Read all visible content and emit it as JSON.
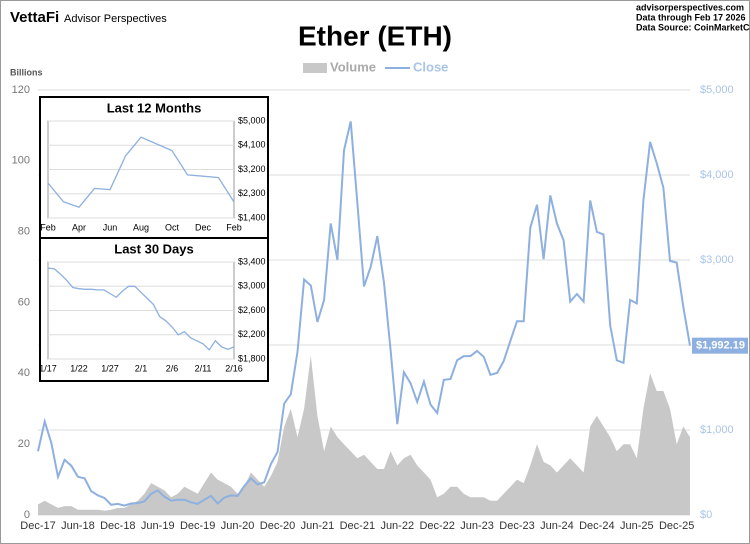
{
  "header": {
    "brand": "VettaFi",
    "publisher": "Advisor Perspectives",
    "site": "advisorperspectives.com",
    "data_through": "Data through Feb 17 2026",
    "source": "Data Source: CoinMarketCap"
  },
  "chart_data": [
    {
      "type": "line",
      "title": "Ether (ETH)",
      "y_label": "Billions",
      "categories": [
        "Dec-17",
        null,
        null,
        null,
        null,
        null,
        "Jun-18",
        null,
        null,
        null,
        null,
        null,
        "Dec-18",
        null,
        null,
        null,
        null,
        null,
        "Jun-19",
        null,
        null,
        null,
        null,
        null,
        "Dec-19",
        null,
        null,
        null,
        null,
        null,
        "Jun-20",
        null,
        null,
        null,
        null,
        null,
        "Dec-20",
        null,
        null,
        null,
        null,
        null,
        "Jun-21",
        null,
        null,
        null,
        null,
        null,
        "Dec-21",
        null,
        null,
        null,
        null,
        null,
        "Jun-22",
        null,
        null,
        null,
        null,
        null,
        "Dec-22",
        null,
        null,
        null,
        null,
        null,
        "Jun-23",
        null,
        null,
        null,
        null,
        null,
        "Dec-23",
        null,
        null,
        null,
        null,
        null,
        "Jun-24",
        null,
        null,
        null,
        null,
        null,
        "Dec-24",
        null,
        null,
        null,
        null,
        null,
        "Jun-25",
        null,
        null,
        null,
        null,
        null,
        "Dec-25",
        null,
        null
      ],
      "ylim": [
        0,
        120
      ],
      "yticks": [
        0,
        20,
        40,
        60,
        80,
        100,
        120
      ],
      "y2lim": [
        0,
        5000
      ],
      "y2ticks": [
        {
          "value": 0,
          "label": "$0"
        },
        {
          "value": 1000,
          "label": "$1,000"
        },
        {
          "value": 2000,
          "label": "$2,000"
        },
        {
          "value": 3000,
          "label": "$3,000"
        },
        {
          "value": 4000,
          "label": "$4,000"
        },
        {
          "value": 5000,
          "label": "$5,000"
        }
      ],
      "grid": true,
      "series": [
        {
          "name": "Volume",
          "style": "area",
          "color": "#c8c8c8",
          "values": [
            3,
            4,
            3,
            2,
            2.5,
            2.5,
            1.5,
            1.5,
            1.5,
            1.5,
            1.2,
            1.5,
            2,
            2,
            3,
            4,
            6,
            9,
            8,
            7,
            5,
            6,
            8,
            7,
            6,
            9,
            12,
            10,
            9,
            8,
            6,
            8,
            12,
            10,
            8,
            11,
            15,
            25,
            30,
            22,
            30,
            45,
            28,
            18,
            25,
            22,
            20,
            18,
            16,
            17,
            15,
            13,
            13,
            18,
            14,
            16,
            17,
            14,
            12,
            10,
            5,
            6,
            8,
            8,
            6,
            5,
            5,
            5,
            4,
            4,
            6,
            8,
            10,
            9,
            14,
            20,
            15,
            14,
            12,
            14,
            16,
            14,
            12,
            25,
            28,
            25,
            22,
            18,
            20,
            20,
            16,
            30,
            40,
            35,
            35,
            30,
            20,
            25,
            22
          ]
        },
        {
          "name": "Close",
          "style": "line",
          "axis": "y2",
          "color": "#8eb0e0",
          "values": [
            750,
            1100,
            850,
            450,
            650,
            580,
            450,
            430,
            280,
            230,
            200,
            120,
            130,
            110,
            135,
            140,
            160,
            250,
            290,
            215,
            170,
            180,
            180,
            150,
            130,
            180,
            225,
            135,
            205,
            230,
            225,
            340,
            430,
            360,
            385,
            600,
            740,
            1310,
            1420,
            1920,
            2770,
            2700,
            2270,
            2530,
            3430,
            3000,
            4290,
            4630,
            3680,
            2690,
            2920,
            3280,
            2730,
            1940,
            1070,
            1680,
            1550,
            1330,
            1570,
            1300,
            1200,
            1590,
            1600,
            1820,
            1870,
            1870,
            1930,
            1860,
            1650,
            1670,
            1810,
            2050,
            2280,
            2280,
            3380,
            3650,
            3010,
            3760,
            3430,
            3230,
            2510,
            2600,
            2510,
            3700,
            3330,
            3300,
            2230,
            1820,
            1790,
            2530,
            2490,
            3700,
            4390,
            4140,
            3850,
            2990,
            2970,
            2450,
            1992.19
          ],
          "value_labels": [
            null,
            null,
            null,
            null,
            null,
            null,
            null,
            null,
            null,
            null,
            null,
            null,
            null,
            null,
            null,
            null,
            null,
            null,
            null,
            null,
            null,
            null,
            null,
            null,
            null,
            null,
            null,
            null,
            null,
            null,
            null,
            null,
            null,
            null,
            null,
            null,
            null,
            null,
            null,
            null,
            null,
            null,
            null,
            null,
            null,
            null,
            null,
            null,
            null,
            null,
            null,
            null,
            null,
            null,
            null,
            null,
            null,
            null,
            null,
            null,
            null,
            null,
            null,
            null,
            null,
            null,
            null,
            null,
            null,
            null,
            null,
            null,
            null,
            null,
            null,
            null,
            null,
            null,
            null,
            null,
            null,
            null,
            null,
            null,
            null,
            null,
            null,
            null,
            null,
            null,
            null,
            null,
            null,
            null,
            null,
            null,
            null,
            null,
            "$1,992.19"
          ]
        }
      ]
    },
    {
      "type": "line",
      "title": "Last 12 Months",
      "categories": [
        "Feb",
        null,
        "Apr",
        null,
        "Jun",
        null,
        "Aug",
        null,
        "Oct",
        null,
        "Dec",
        null,
        "Feb"
      ],
      "y2lim": [
        1400,
        5000
      ],
      "y2ticks": [
        {
          "value": 1400,
          "label": "$1,400"
        },
        {
          "value": 2300,
          "label": "$2,300"
        },
        {
          "value": 3200,
          "label": "$3,200"
        },
        {
          "value": 4100,
          "label": "$4,100"
        },
        {
          "value": 5000,
          "label": "$5,000"
        }
      ],
      "grid": true,
      "series": [
        {
          "style": "line",
          "axis": "y2",
          "color": "#8eb0e0",
          "values": [
            2700,
            2000,
            1800,
            2500,
            2450,
            3700,
            4400,
            4150,
            3900,
            3000,
            2950,
            2900,
            1992
          ]
        }
      ]
    },
    {
      "type": "line",
      "title": "Last 30 Days",
      "categories": [
        "1/17",
        null,
        null,
        null,
        null,
        "1/22",
        null,
        null,
        null,
        null,
        "1/27",
        null,
        null,
        null,
        null,
        "2/1",
        null,
        null,
        null,
        null,
        "2/6",
        null,
        null,
        null,
        null,
        "2/11",
        null,
        null,
        null,
        null,
        "2/16"
      ],
      "y2lim": [
        1800,
        3400
      ],
      "y2ticks": [
        {
          "value": 1800,
          "label": "$1,800"
        },
        {
          "value": 2200,
          "label": "$2,200"
        },
        {
          "value": 2600,
          "label": "$2,600"
        },
        {
          "value": 3000,
          "label": "$3,000"
        },
        {
          "value": 3400,
          "label": "$3,400"
        }
      ],
      "grid": true,
      "series": [
        {
          "style": "line",
          "axis": "y2",
          "color": "#8eb0e0",
          "values": [
            3300,
            3290,
            3200,
            3100,
            2980,
            2960,
            2950,
            2950,
            2940,
            2940,
            2880,
            2820,
            2920,
            3000,
            3000,
            2900,
            2800,
            2700,
            2500,
            2430,
            2330,
            2200,
            2250,
            2150,
            2100,
            2050,
            1950,
            2100,
            2000,
            1960,
            2000
          ]
        }
      ]
    }
  ]
}
